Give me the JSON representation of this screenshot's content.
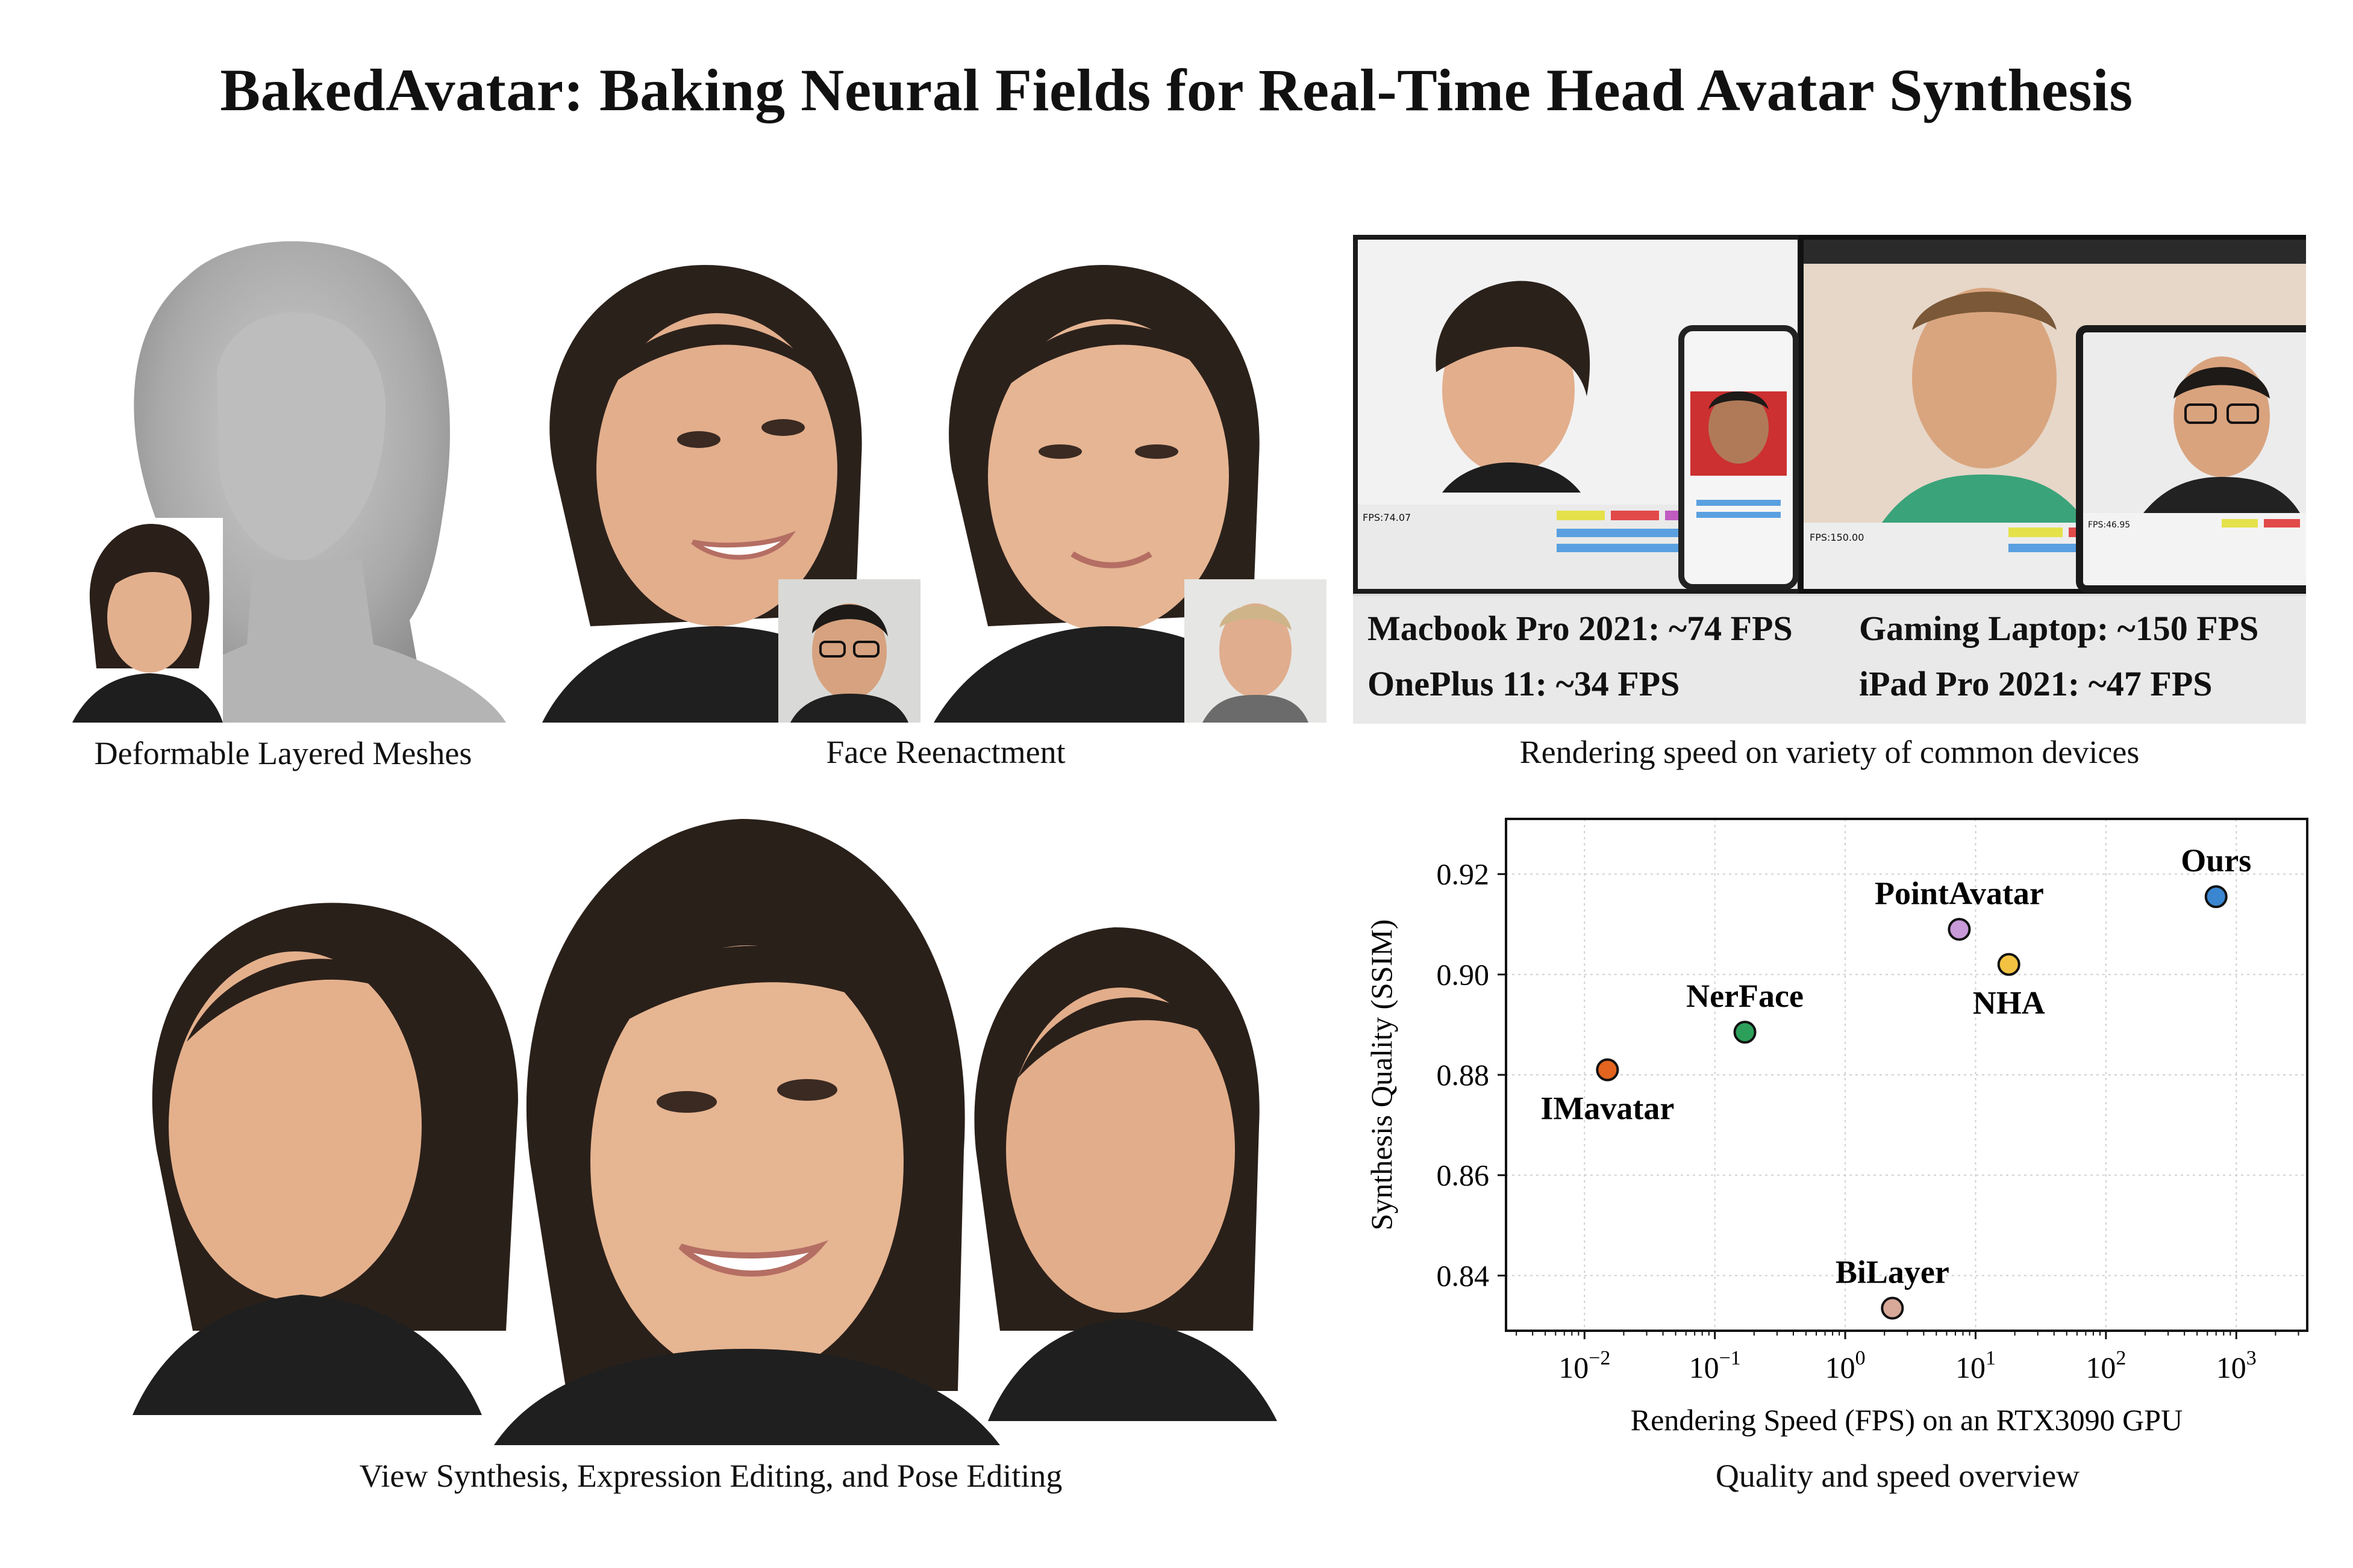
{
  "title": "BakedAvatar: Baking Neural Fields for Real-Time Head Avatar Synthesis",
  "panels": {
    "meshes": {
      "caption": "Deformable Layered Meshes"
    },
    "reenactment": {
      "caption": "Face Reenactment"
    },
    "devices": {
      "caption": "Rendering speed on variety of common devices",
      "fps": [
        "Macbook Pro 2021: ~74 FPS",
        "Gaming Laptop: ~150 FPS",
        "OnePlus 11: ~34 FPS",
        "iPad Pro 2021: ~47 FPS"
      ],
      "screen_fps": [
        "FPS:74.07",
        "FPS:150.00",
        "FPS:46.95"
      ]
    },
    "view_synthesis": {
      "caption": "View Synthesis, Expression Editing, and Pose Editing"
    },
    "overview": {
      "caption": "Quality and speed overview"
    }
  },
  "chart_data": {
    "type": "scatter",
    "xlabel": "Rendering Speed (FPS) on an RTX3090 GPU",
    "ylabel": "Synthesis Quality (SSIM)",
    "xscale": "log",
    "xlim": [
      0.0025,
      3500
    ],
    "ylim": [
      0.829,
      0.931
    ],
    "grid": true,
    "x_ticks": [
      {
        "value": 0.01,
        "base": "10",
        "exp": "−2"
      },
      {
        "value": 0.1,
        "base": "10",
        "exp": "−1"
      },
      {
        "value": 1,
        "base": "10",
        "exp": "0"
      },
      {
        "value": 10,
        "base": "10",
        "exp": "1"
      },
      {
        "value": 100,
        "base": "10",
        "exp": "2"
      },
      {
        "value": 1000,
        "base": "10",
        "exp": "3"
      }
    ],
    "y_ticks": [
      "0.84",
      "0.86",
      "0.88",
      "0.90",
      "0.92"
    ],
    "points": [
      {
        "name": "IMavatar",
        "x": 0.015,
        "y": 0.881,
        "color": "#e2641e",
        "label_pos": "below"
      },
      {
        "name": "NerFace",
        "x": 0.17,
        "y": 0.8885,
        "color": "#2ca05a",
        "label_pos": "above"
      },
      {
        "name": "BiLayer",
        "x": 2.3,
        "y": 0.8335,
        "color": "#d8a898",
        "label_pos": "above"
      },
      {
        "name": "PointAvatar",
        "x": 7.5,
        "y": 0.909,
        "color": "#c89ad8",
        "label_pos": "above"
      },
      {
        "name": "NHA",
        "x": 18,
        "y": 0.902,
        "color": "#f3c242",
        "label_pos": "below"
      },
      {
        "name": "Ours",
        "x": 700,
        "y": 0.9155,
        "color": "#3a86d0",
        "label_pos": "above"
      }
    ]
  }
}
